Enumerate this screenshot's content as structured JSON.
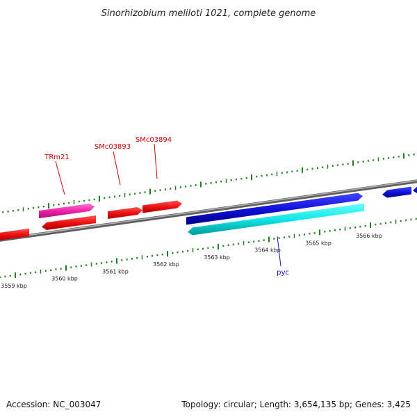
{
  "title": "Sinorhizobium meliloti 1021, complete genome",
  "footer": {
    "accession": "Accession: NC_003047",
    "stats": "Topology: circular; Length: 3,654,135 bp; Genes: 3,425"
  },
  "colors": {
    "backbone": "#8a8a8a",
    "tick": "#1e7d1e",
    "red": "#ee1111",
    "magenta": "#ee22aa",
    "blue": "#1111dd",
    "cyan": "#11e6e6"
  },
  "ticks": {
    "major_labels": [
      "3559 kbp",
      "3560 kbp",
      "3561 kbp",
      "3562 kbp",
      "3563 kbp",
      "3564 kbp",
      "3565 kbp",
      "3566 kbp"
    ]
  },
  "genes": [
    {
      "id": "g-red-left",
      "strand": "reverse",
      "color": "red",
      "label": ""
    },
    {
      "id": "g-trm21",
      "strand": "forward",
      "color": "magenta",
      "label": "TRm21"
    },
    {
      "id": "g-red-2",
      "strand": "reverse",
      "color": "red",
      "label": ""
    },
    {
      "id": "g-smc03893",
      "strand": "forward",
      "color": "red",
      "label": "SMc03893"
    },
    {
      "id": "g-smc03894",
      "strand": "forward",
      "color": "red",
      "label": "SMc03894"
    },
    {
      "id": "g-blue-long",
      "strand": "forward",
      "color": "blue",
      "label": ""
    },
    {
      "id": "g-pyc",
      "strand": "reverse",
      "color": "cyan",
      "label": "pyc"
    },
    {
      "id": "g-blue-right",
      "strand": "forward",
      "color": "blue",
      "label": ""
    }
  ]
}
